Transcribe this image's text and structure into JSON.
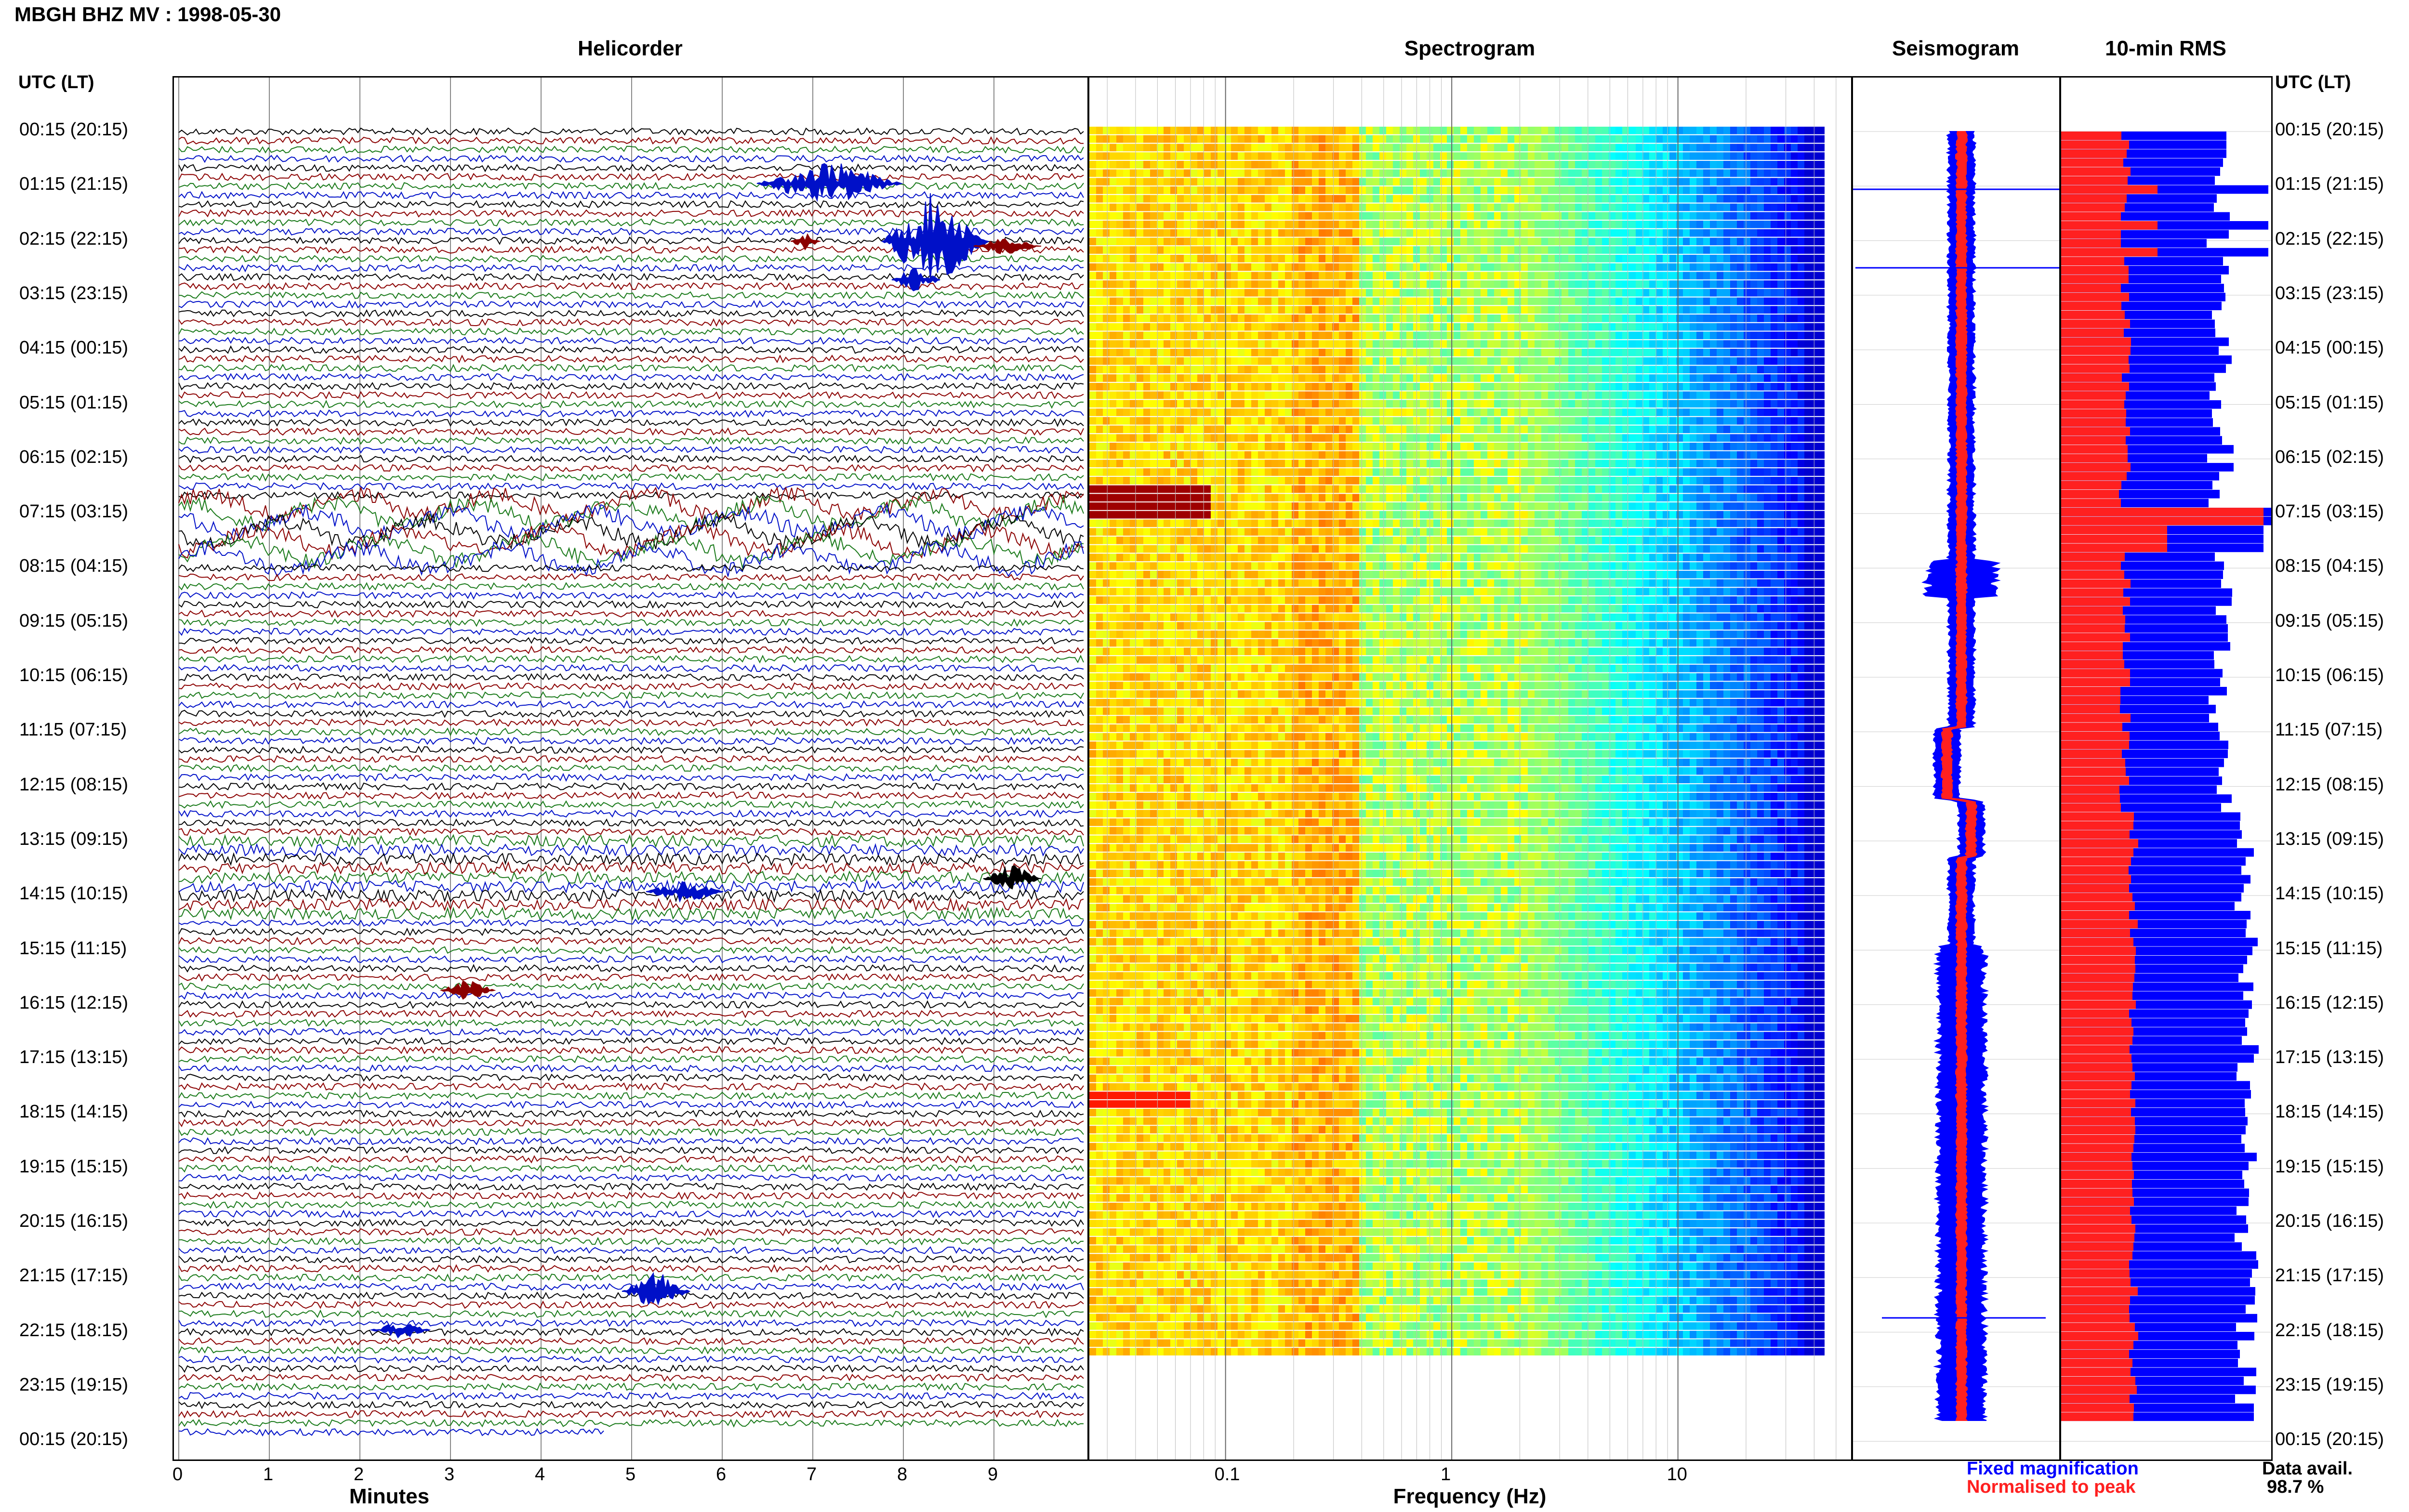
{
  "title": "MBGH BHZ MV : 1998-05-30",
  "utc_header": "UTC (LT)",
  "colors": {
    "black": "#000000",
    "red": "#8b0000",
    "green": "#1a7a1a",
    "blue": "#0010c8",
    "rms_blue": "#0000ff",
    "rms_red": "#ff2020"
  },
  "chart_data": [
    {
      "type": "line",
      "title": "Helicorder",
      "xlabel": "Minutes",
      "x_ticks": [
        "0",
        "1",
        "2",
        "3",
        "4",
        "5",
        "6",
        "7",
        "8",
        "9"
      ],
      "xlim": [
        0,
        10
      ],
      "row_labels": [
        "00:15 (20:15)",
        "01:15 (21:15)",
        "02:15 (22:15)",
        "03:15 (23:15)",
        "04:15 (00:15)",
        "05:15 (01:15)",
        "06:15 (02:15)",
        "07:15 (03:15)",
        "08:15 (04:15)",
        "09:15 (05:15)",
        "10:15 (06:15)",
        "11:15 (07:15)",
        "12:15 (08:15)",
        "13:15 (09:15)",
        "14:15 (10:15)",
        "15:15 (11:15)",
        "16:15 (12:15)",
        "17:15 (13:15)",
        "18:15 (14:15)",
        "19:15 (15:15)",
        "20:15 (16:15)",
        "21:15 (17:15)",
        "22:15 (18:15)",
        "23:15 (19:15)",
        "00:15 (20:15)"
      ],
      "series_colors": [
        "black",
        "red",
        "green",
        "blue"
      ],
      "traces_per_hour": 6
    },
    {
      "type": "heatmap",
      "title": "Spectrogram",
      "xlabel": "Frequency (Hz)",
      "x_scale": "log",
      "x_ticks": [
        "0.1",
        "1",
        "10"
      ],
      "xlim": [
        0.025,
        60
      ]
    },
    {
      "type": "line",
      "title": "Seismogram",
      "legend": [
        "Fixed magnification",
        "Normalised to peak"
      ]
    },
    {
      "type": "bar",
      "title": "10-min RMS",
      "data_avail_label": "Data avail.",
      "data_avail_value": "98.7 %"
    }
  ]
}
